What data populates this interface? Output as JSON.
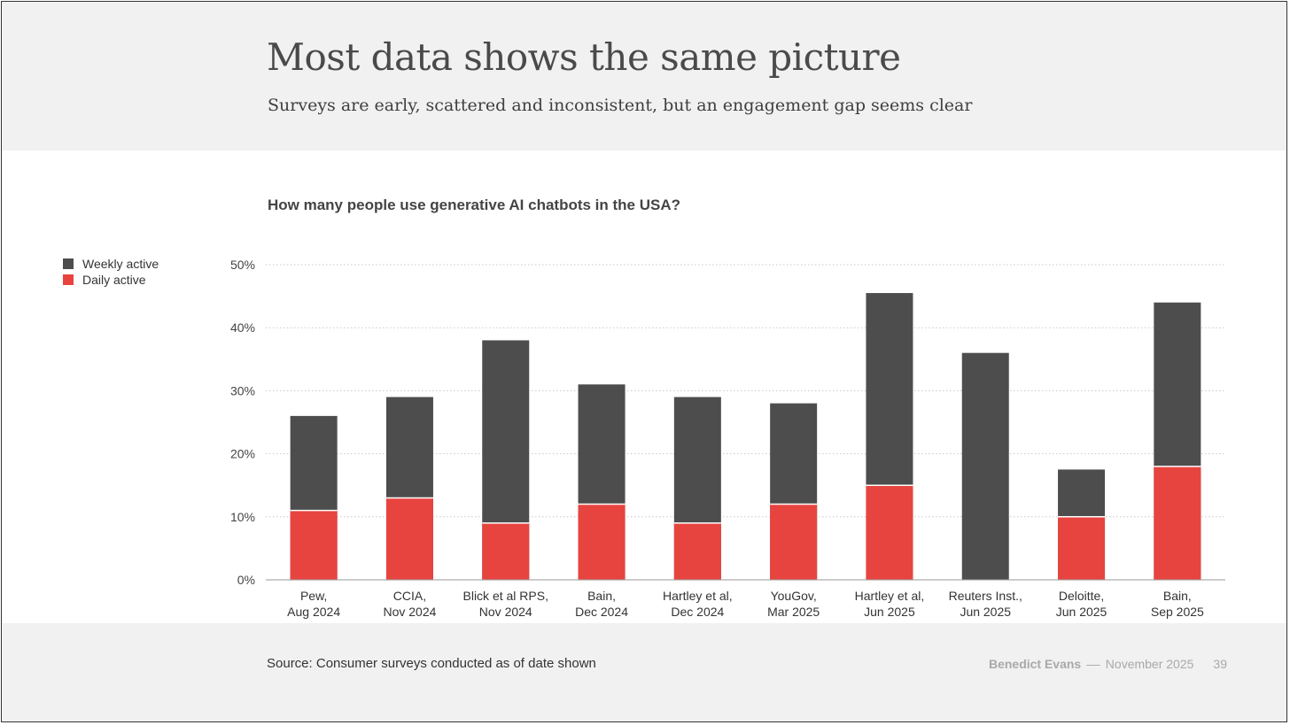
{
  "slide": {
    "title": "Most data shows the same picture",
    "subtitle": "Surveys are early, scattered and inconsistent, but an engagement gap seems clear",
    "source": "Source: Consumer surveys conducted as of date shown",
    "author": "Benedict Evans",
    "separator": "––",
    "date": "November 2025",
    "page_number": "39"
  },
  "colors": {
    "weekly": "#4d4d4d",
    "daily": "#e8443f",
    "grid": "#c8c8c8",
    "axis": "#999999"
  },
  "chart_data": {
    "type": "bar",
    "stacked": false,
    "title": "How many people use generative AI chatbots in the USA?",
    "categories": [
      [
        "Pew,",
        "Aug 2024"
      ],
      [
        "CCIA,",
        "Nov 2024"
      ],
      [
        "Blick et al RPS,",
        "Nov 2024"
      ],
      [
        "Bain,",
        "Dec 2024"
      ],
      [
        "Hartley et al,",
        "Dec 2024"
      ],
      [
        "YouGov,",
        "Mar 2025"
      ],
      [
        "Hartley et al,",
        "Jun 2025"
      ],
      [
        "Reuters Inst.,",
        "Jun 2025"
      ],
      [
        "Deloitte,",
        "Jun 2025"
      ],
      [
        "Bain,",
        "Sep 2025"
      ]
    ],
    "series": [
      {
        "name": "Weekly active",
        "values": [
          26,
          29,
          38,
          31,
          29,
          28,
          45.5,
          36,
          17.5,
          44
        ],
        "color": "#4d4d4d"
      },
      {
        "name": "Daily active",
        "values": [
          11,
          13,
          9,
          12,
          9,
          12,
          15,
          null,
          10,
          18
        ],
        "color": "#e8443f"
      }
    ],
    "yticks": [
      "0%",
      "10%",
      "20%",
      "30%",
      "40%",
      "50%"
    ],
    "ylim": [
      0,
      50
    ],
    "grid": true,
    "legend_position": "left"
  }
}
